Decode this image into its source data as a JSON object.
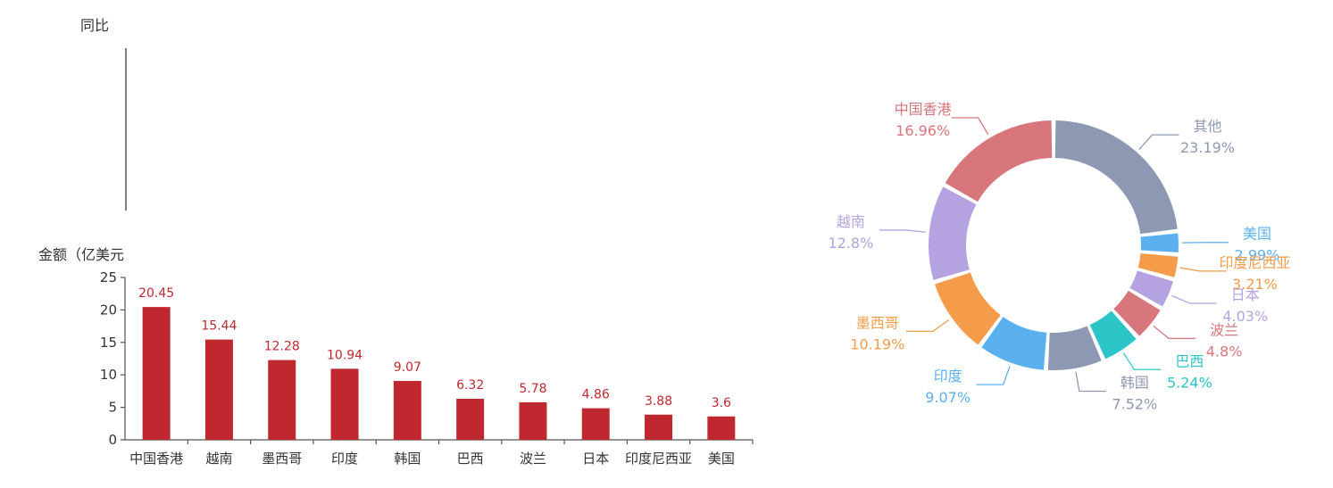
{
  "chart_data": [
    {
      "type": "line",
      "ylabel": "同比",
      "x": [],
      "series": []
    },
    {
      "type": "bar",
      "ylabel": "金额（亿美元",
      "categories": [
        "中国香港",
        "越南",
        "墨西哥",
        "印度",
        "韩国",
        "巴西",
        "波兰",
        "日本",
        "印度尼西亚",
        "美国"
      ],
      "values": [
        20.45,
        15.44,
        12.28,
        10.94,
        9.07,
        6.32,
        5.78,
        4.86,
        3.88,
        3.6
      ],
      "value_labels": [
        "20.45",
        "15.44",
        "12.28",
        "10.94",
        "9.07",
        "6.32",
        "5.78",
        "4.86",
        "3.88",
        "3.6"
      ],
      "ylim": [
        0,
        25
      ],
      "yticks": [
        "0",
        "5",
        "10",
        "15",
        "20",
        "25"
      ],
      "grid": false,
      "color": "#c0282f"
    },
    {
      "type": "pie",
      "donut": true,
      "slices": [
        {
          "name": "其他",
          "value": 23.19,
          "percent": "23.19%",
          "color": "#8d98b3"
        },
        {
          "name": "美国",
          "value": 2.99,
          "percent": "2.99%",
          "color": "#5bb0ef"
        },
        {
          "name": "印度尼西亚",
          "value": 3.21,
          "percent": "3.21%",
          "color": "#f59c4b"
        },
        {
          "name": "日本",
          "value": 4.03,
          "percent": "4.03%",
          "color": "#b5a2e0"
        },
        {
          "name": "波兰",
          "value": 4.8,
          "percent": "4.8%",
          "color": "#d8777b"
        },
        {
          "name": "巴西",
          "value": 5.24,
          "percent": "5.24%",
          "color": "#2cc5c7"
        },
        {
          "name": "韩国",
          "value": 7.52,
          "percent": "7.52%",
          "color": "#8d98b3"
        },
        {
          "name": "印度",
          "value": 9.07,
          "percent": "9.07%",
          "color": "#5bb0ef"
        },
        {
          "name": "墨西哥",
          "value": 10.19,
          "percent": "10.19%",
          "color": "#f59c4b"
        },
        {
          "name": "越南",
          "value": 12.8,
          "percent": "12.8%",
          "color": "#b5a2e0"
        },
        {
          "name": "中国香港",
          "value": 16.96,
          "percent": "16.96%",
          "color": "#d8777b"
        }
      ]
    }
  ]
}
